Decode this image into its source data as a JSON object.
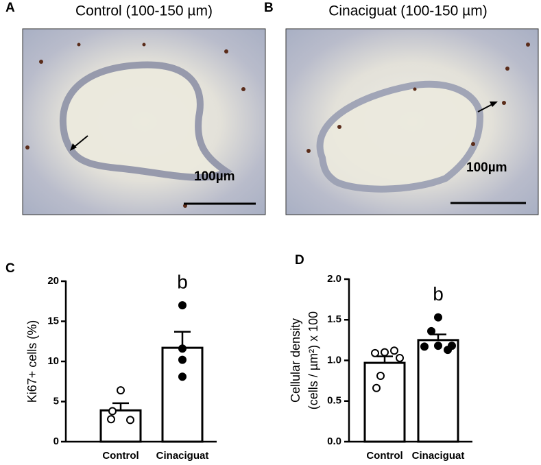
{
  "panels": [
    {
      "label": "A",
      "title": "Control (100-150 µm)",
      "scale_label": "100µm"
    },
    {
      "label": "B",
      "title": "Cinaciguat (100-150 µm)",
      "scale_label": "100µm"
    },
    {
      "label": "C"
    },
    {
      "label": "D"
    }
  ],
  "chart_data": [
    {
      "type": "bar",
      "ylabel": [
        "Ki67+ cells (%)"
      ],
      "categories": [
        "Control",
        "Cinaciguat"
      ],
      "values": [
        3.9,
        11.7
      ],
      "errors": [
        0.9,
        2.0
      ],
      "points": [
        [
          6.4,
          3.8,
          2.8,
          2.7
        ],
        [
          17.0,
          11.6,
          10.2,
          8.1
        ]
      ],
      "point_fill": [
        "#ffffff",
        "#000000"
      ],
      "color": "#ffffff",
      "annotations": [
        {
          "text": "b",
          "category": 1
        }
      ],
      "ylim": [
        0,
        20
      ],
      "yticks": [
        0,
        5,
        10,
        15,
        20
      ]
    },
    {
      "type": "bar",
      "ylabel": [
        "Cellular density",
        "(cells / µm²) x 100"
      ],
      "categories": [
        "Control",
        "Cinaciguat"
      ],
      "values": [
        0.97,
        1.25
      ],
      "errors": [
        0.08,
        0.07
      ],
      "points": [
        [
          1.09,
          1.1,
          1.12,
          1.03,
          0.81,
          0.66
        ],
        [
          1.53,
          1.36,
          1.18,
          1.17,
          1.18,
          1.13
        ]
      ],
      "point_fill": [
        "#ffffff",
        "#000000"
      ],
      "color": "#ffffff",
      "annotations": [
        {
          "text": "b",
          "category": 1
        }
      ],
      "ylim": [
        0,
        2.0
      ],
      "yticks": [
        {
          "value": 0,
          "label": "0.0"
        },
        {
          "value": 0.5,
          "label": "0.5"
        },
        {
          "value": 1,
          "label": "1.0"
        },
        {
          "value": 1.5,
          "label": "1.5"
        },
        {
          "value": 2,
          "label": "2.0"
        }
      ]
    }
  ]
}
